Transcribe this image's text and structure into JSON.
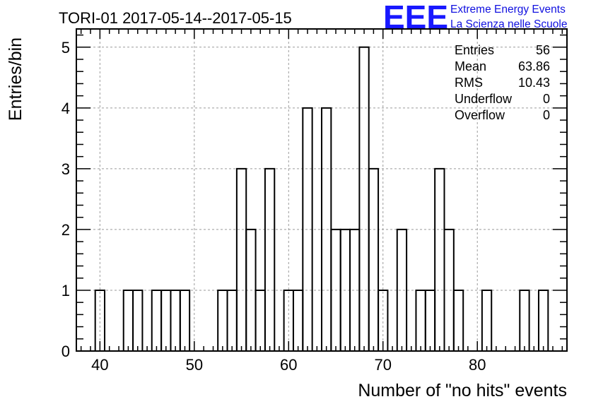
{
  "header": {
    "title": "TORI-01 2017-05-14--2017-05-15",
    "logo_letters": "EEE",
    "logo_line1": "Extreme Energy Events",
    "logo_line2": "La Scienza nelle Scuole"
  },
  "stats": [
    {
      "label": "Entries",
      "value": "56"
    },
    {
      "label": "Mean",
      "value": "63.86"
    },
    {
      "label": "RMS",
      "value": "10.43"
    },
    {
      "label": "Underflow",
      "value": "0"
    },
    {
      "label": "Overflow",
      "value": "0"
    }
  ],
  "colors": {
    "bars": "#000000",
    "grid": "#9a9a9a",
    "logo": "#1818ff"
  },
  "chart_data": {
    "type": "bar",
    "title": "TORI-01 2017-05-14--2017-05-15",
    "xlabel": "Number of \"no hits\" events",
    "ylabel": "Entries/bin",
    "xlim": [
      37.5,
      89.5
    ],
    "ylim": [
      0,
      5.3
    ],
    "bin_width": 1,
    "x_ticks": [
      40,
      50,
      60,
      70,
      80
    ],
    "y_ticks": [
      0,
      1,
      2,
      3,
      4,
      5
    ],
    "grid": true,
    "x": [
      40,
      43,
      44,
      46,
      47,
      48,
      49,
      53,
      54,
      55,
      56,
      57,
      58,
      60,
      61,
      62,
      64,
      65,
      66,
      67,
      68,
      69,
      70,
      72,
      74,
      75,
      76,
      77,
      78,
      81,
      85,
      87
    ],
    "values": [
      1,
      1,
      1,
      1,
      1,
      1,
      1,
      1,
      1,
      3,
      2,
      1,
      3,
      1,
      1,
      4,
      4,
      2,
      2,
      2,
      5,
      3,
      1,
      2,
      1,
      1,
      3,
      2,
      1,
      1,
      1,
      1
    ]
  }
}
